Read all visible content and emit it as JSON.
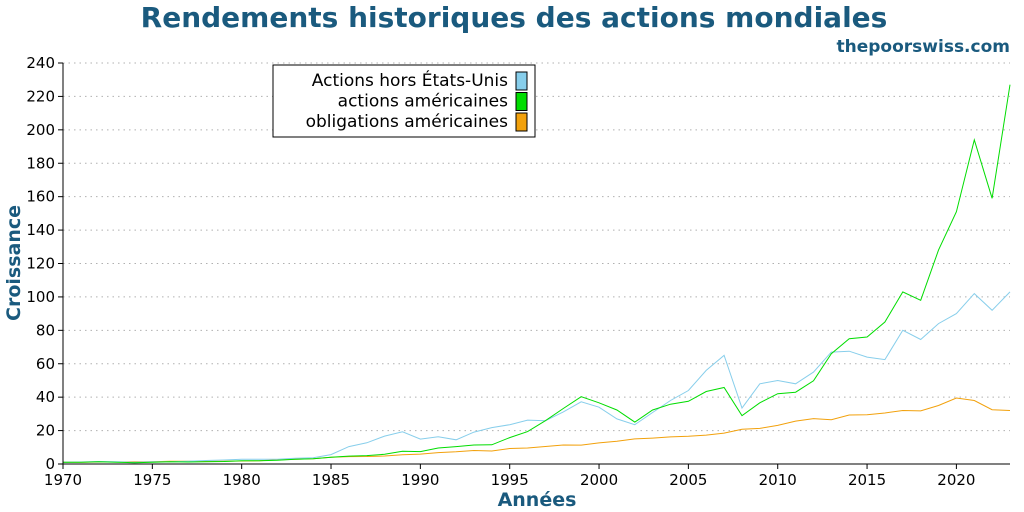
{
  "header": {
    "title": "Rendements historiques des actions mondiales",
    "source": "thepoorswiss.com"
  },
  "chart_data": {
    "type": "line",
    "title": "Rendements historiques des actions mondiales",
    "xlabel": "Années",
    "ylabel": "Croissance",
    "xlim": [
      1970,
      2023
    ],
    "ylim": [
      0,
      240
    ],
    "x_ticks": [
      1970,
      1975,
      1980,
      1985,
      1990,
      1995,
      2000,
      2005,
      2010,
      2015,
      2020
    ],
    "y_ticks": [
      0,
      20,
      40,
      60,
      80,
      100,
      120,
      140,
      160,
      180,
      200,
      220,
      240
    ],
    "grid": "horizontal-dotted",
    "legend_position": "top-left",
    "x": [
      1970,
      1971,
      1972,
      1973,
      1974,
      1975,
      1976,
      1977,
      1978,
      1979,
      1980,
      1981,
      1982,
      1983,
      1984,
      1985,
      1986,
      1987,
      1988,
      1989,
      1990,
      1991,
      1992,
      1993,
      1994,
      1995,
      1996,
      1997,
      1998,
      1999,
      2000,
      2001,
      2002,
      2003,
      2004,
      2005,
      2006,
      2007,
      2008,
      2009,
      2010,
      2011,
      2012,
      2013,
      2014,
      2015,
      2016,
      2017,
      2018,
      2019,
      2020,
      2021,
      2022,
      2023
    ],
    "series": [
      {
        "name": "Actions hors États-Unis",
        "color": "#87ceeb",
        "values": [
          1.0,
          1.2,
          1.5,
          1.3,
          1.0,
          1.3,
          1.3,
          1.6,
          2.1,
          2.4,
          2.9,
          2.8,
          2.8,
          3.5,
          3.8,
          5.6,
          10.4,
          12.7,
          16.7,
          19.3,
          14.9,
          16.3,
          14.5,
          19.1,
          21.8,
          23.5,
          26.3,
          25.9,
          31.2,
          37.2,
          34.0,
          27.0,
          23.5,
          30.8,
          38.0,
          44.0,
          56.0,
          65.0,
          33.5,
          48.0,
          50.0,
          48.0,
          55.0,
          67.0,
          67.5,
          64.0,
          62.5,
          80.0,
          74.5,
          84.0,
          90.0,
          102.0,
          92.0,
          103.0
        ]
      },
      {
        "name": "actions américaines",
        "color": "#00dd00",
        "values": [
          1.0,
          1.1,
          1.3,
          1.1,
          0.8,
          1.1,
          1.3,
          1.2,
          1.3,
          1.5,
          2.0,
          1.9,
          2.3,
          2.9,
          3.1,
          4.0,
          4.7,
          5.0,
          5.8,
          7.6,
          7.4,
          9.6,
          10.4,
          11.4,
          11.5,
          15.8,
          19.4,
          25.9,
          33.2,
          40.3,
          36.6,
          32.3,
          25.1,
          32.3,
          35.8,
          37.5,
          43.4,
          45.8,
          28.9,
          36.6,
          42.1,
          43.0,
          49.8,
          66.0,
          75.0,
          76.0,
          85.0,
          103.0,
          98.0,
          128.0,
          151.0,
          194.0,
          159.0,
          227.0
        ]
      },
      {
        "name": "obligations américaines",
        "color": "#f2a10c",
        "values": [
          1.0,
          1.1,
          1.2,
          1.2,
          1.3,
          1.4,
          1.6,
          1.7,
          1.7,
          1.7,
          1.8,
          1.9,
          2.6,
          2.8,
          3.2,
          4.0,
          4.4,
          4.5,
          4.8,
          5.5,
          5.9,
          6.8,
          7.3,
          8.1,
          7.8,
          9.3,
          9.6,
          10.5,
          11.4,
          11.3,
          12.6,
          13.6,
          15.0,
          15.5,
          16.2,
          16.6,
          17.3,
          18.5,
          20.8,
          21.3,
          23.1,
          25.7,
          27.2,
          26.5,
          29.3,
          29.5,
          30.5,
          32.0,
          31.8,
          35.0,
          39.5,
          38.0,
          32.5,
          32.0
        ]
      }
    ]
  }
}
